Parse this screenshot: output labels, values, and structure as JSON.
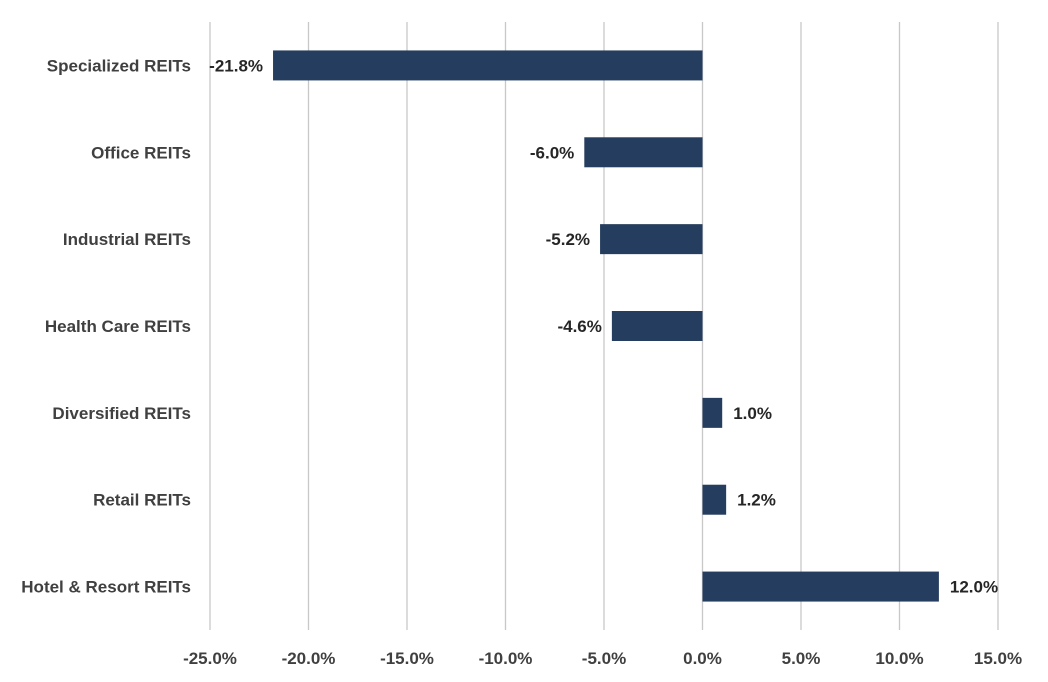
{
  "chart_data": {
    "type": "bar",
    "orientation": "horizontal",
    "title": "",
    "xlabel": "",
    "ylabel": "",
    "categories": [
      "Specialized REITs",
      "Office REITs",
      "Industrial REITs",
      "Health Care REITs",
      "Diversified REITs",
      "Retail REITs",
      "Hotel & Resort REITs"
    ],
    "values": [
      -21.8,
      -6.0,
      -5.2,
      -4.6,
      1.0,
      1.2,
      12.0
    ],
    "value_labels": [
      "-21.8%",
      "-6.0%",
      "-5.2%",
      "-4.6%",
      "1.0%",
      "1.2%",
      "12.0%"
    ],
    "xlim": [
      -25,
      15
    ],
    "x_ticks": [
      -25,
      -20,
      -15,
      -10,
      -5,
      0,
      5,
      10,
      15
    ],
    "x_tick_labels": [
      "-25.0%",
      "-20.0%",
      "-15.0%",
      "-10.0%",
      "-5.0%",
      "0.0%",
      "5.0%",
      "10.0%",
      "15.0%"
    ],
    "grid": "vertical",
    "legend": "none",
    "bar_color": "#253D5E"
  }
}
